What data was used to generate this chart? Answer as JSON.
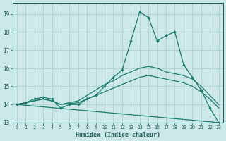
{
  "title": "",
  "xlabel": "Humidex (Indice chaleur)",
  "background_color": "#cce8e8",
  "grid_color": "#aacccc",
  "line_color": "#1a7a6e",
  "xlim": [
    -0.5,
    23.5
  ],
  "ylim": [
    13,
    19.6
  ],
  "yticks": [
    13,
    14,
    15,
    16,
    17,
    18,
    19
  ],
  "xticks": [
    0,
    1,
    2,
    3,
    4,
    5,
    6,
    7,
    8,
    9,
    10,
    11,
    12,
    13,
    14,
    15,
    16,
    17,
    18,
    19,
    20,
    21,
    22,
    23
  ],
  "series": [
    {
      "x": [
        0,
        1,
        2,
        3,
        4,
        5,
        6,
        7,
        8,
        9,
        10,
        11,
        12,
        13,
        14,
        15,
        16,
        17,
        18,
        19,
        20,
        21,
        22,
        23
      ],
      "y": [
        14.0,
        14.1,
        14.3,
        14.4,
        14.3,
        13.8,
        14.0,
        14.0,
        14.3,
        14.5,
        15.0,
        15.5,
        15.9,
        17.5,
        19.1,
        18.8,
        17.5,
        17.8,
        18.0,
        16.2,
        15.5,
        14.8,
        13.8,
        13.0
      ],
      "marker": true
    },
    {
      "x": [
        0,
        1,
        2,
        3,
        4,
        5,
        6,
        7,
        8,
        9,
        10,
        11,
        12,
        13,
        14,
        15,
        16,
        17,
        18,
        19,
        20,
        21,
        22,
        23
      ],
      "y": [
        14.0,
        14.1,
        14.2,
        14.3,
        14.2,
        14.0,
        14.1,
        14.2,
        14.5,
        14.8,
        15.1,
        15.3,
        15.6,
        15.8,
        16.0,
        16.1,
        16.0,
        15.8,
        15.7,
        15.6,
        15.4,
        15.0,
        14.5,
        14.0
      ],
      "marker": false
    },
    {
      "x": [
        0,
        1,
        2,
        3,
        4,
        5,
        6,
        7,
        8,
        9,
        10,
        11,
        12,
        13,
        14,
        15,
        16,
        17,
        18,
        19,
        20,
        21,
        22,
        23
      ],
      "y": [
        14.0,
        14.1,
        14.2,
        14.3,
        14.2,
        14.0,
        14.05,
        14.1,
        14.3,
        14.5,
        14.7,
        14.9,
        15.1,
        15.3,
        15.5,
        15.6,
        15.5,
        15.4,
        15.3,
        15.2,
        15.0,
        14.7,
        14.3,
        13.8
      ],
      "marker": false
    },
    {
      "x": [
        0,
        23
      ],
      "y": [
        14.0,
        13.0
      ],
      "marker": false
    }
  ]
}
